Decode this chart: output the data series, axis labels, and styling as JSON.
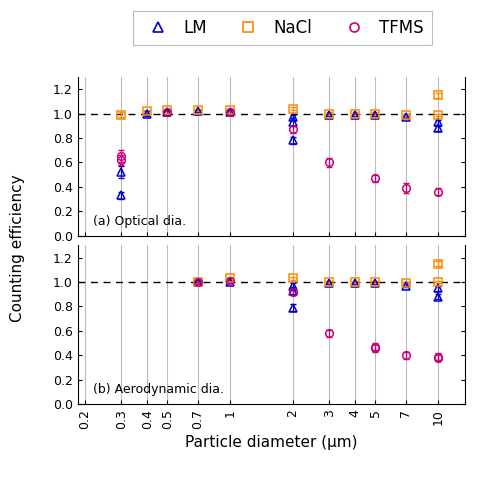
{
  "x_ticks": [
    0.2,
    0.3,
    0.4,
    0.5,
    0.7,
    1,
    2,
    3,
    4,
    5,
    7,
    10
  ],
  "x_labels": [
    "0.2",
    "0.3",
    "0.4",
    "0.5",
    "0.7",
    "1",
    "2",
    "3",
    "4",
    "5",
    "7",
    "10"
  ],
  "panel_a": {
    "LM": {
      "x": [
        0.3,
        0.3,
        0.4,
        0.5,
        0.7,
        1.0,
        2.0,
        2.0,
        2.0,
        3.0,
        4.0,
        5.0,
        7.0,
        10.0,
        10.0
      ],
      "y": [
        0.33,
        0.52,
        1.0,
        1.01,
        1.02,
        1.01,
        0.97,
        0.93,
        0.78,
        0.99,
        0.99,
        0.99,
        0.97,
        0.93,
        0.88
      ],
      "yerr": [
        0.03,
        0.05,
        0.02,
        0.02,
        0.01,
        0.01,
        0.02,
        0.03,
        0.03,
        0.01,
        0.01,
        0.01,
        0.01,
        0.02,
        0.02
      ]
    },
    "NaCl": {
      "x": [
        0.3,
        0.4,
        0.5,
        0.7,
        1.0,
        2.0,
        3.0,
        4.0,
        5.0,
        7.0,
        10.0,
        10.0
      ],
      "y": [
        0.99,
        1.02,
        1.03,
        1.03,
        1.03,
        1.04,
        1.0,
        1.0,
        1.0,
        0.99,
        0.99,
        1.15
      ],
      "yerr": [
        0.02,
        0.01,
        0.01,
        0.01,
        0.01,
        0.01,
        0.01,
        0.01,
        0.01,
        0.01,
        0.01,
        0.02
      ]
    },
    "TFMS": {
      "x": [
        0.3,
        0.3,
        0.5,
        1.0,
        2.0,
        3.0,
        5.0,
        7.0,
        10.0
      ],
      "y": [
        0.65,
        0.62,
        1.01,
        1.01,
        0.87,
        0.6,
        0.47,
        0.39,
        0.36
      ],
      "yerr": [
        0.05,
        0.04,
        0.02,
        0.02,
        0.03,
        0.04,
        0.03,
        0.04,
        0.03
      ]
    }
  },
  "panel_b": {
    "LM": {
      "x": [
        0.7,
        1.0,
        2.0,
        2.0,
        2.0,
        3.0,
        4.0,
        5.0,
        7.0,
        10.0,
        10.0
      ],
      "y": [
        1.0,
        1.0,
        0.97,
        0.93,
        0.79,
        0.99,
        0.99,
        0.99,
        0.97,
        0.95,
        0.88
      ],
      "yerr": [
        0.01,
        0.01,
        0.02,
        0.03,
        0.03,
        0.01,
        0.01,
        0.01,
        0.01,
        0.02,
        0.02
      ]
    },
    "NaCl": {
      "x": [
        0.7,
        1.0,
        2.0,
        3.0,
        4.0,
        5.0,
        7.0,
        10.0,
        10.0
      ],
      "y": [
        1.0,
        1.03,
        1.03,
        1.0,
        1.0,
        1.0,
        0.99,
        1.0,
        1.15
      ],
      "yerr": [
        0.01,
        0.01,
        0.01,
        0.01,
        0.01,
        0.01,
        0.01,
        0.01,
        0.02
      ]
    },
    "TFMS": {
      "x": [
        0.7,
        1.0,
        2.0,
        3.0,
        5.0,
        5.0,
        7.0,
        10.0,
        10.0
      ],
      "y": [
        1.0,
        1.01,
        0.92,
        0.58,
        0.47,
        0.46,
        0.4,
        0.39,
        0.38
      ],
      "yerr": [
        0.02,
        0.02,
        0.03,
        0.03,
        0.03,
        0.03,
        0.03,
        0.03,
        0.03
      ]
    }
  },
  "colors": {
    "LM": "#0000cc",
    "NaCl": "#ff8800",
    "TFMS": "#cc0077"
  },
  "ylim": [
    0.0,
    1.3
  ],
  "yticks": [
    0.0,
    0.2,
    0.4,
    0.6,
    0.8,
    1.0,
    1.2
  ],
  "ylabel": "Counting efficiency",
  "xlabel": "Particle diameter (μm)",
  "vlines": [
    0.2,
    0.3,
    0.4,
    0.5,
    0.7,
    1,
    2,
    3,
    4,
    5,
    7,
    10
  ],
  "label_a": "(a) Optical dia.",
  "label_b": "(b) Aerodynamic dia."
}
